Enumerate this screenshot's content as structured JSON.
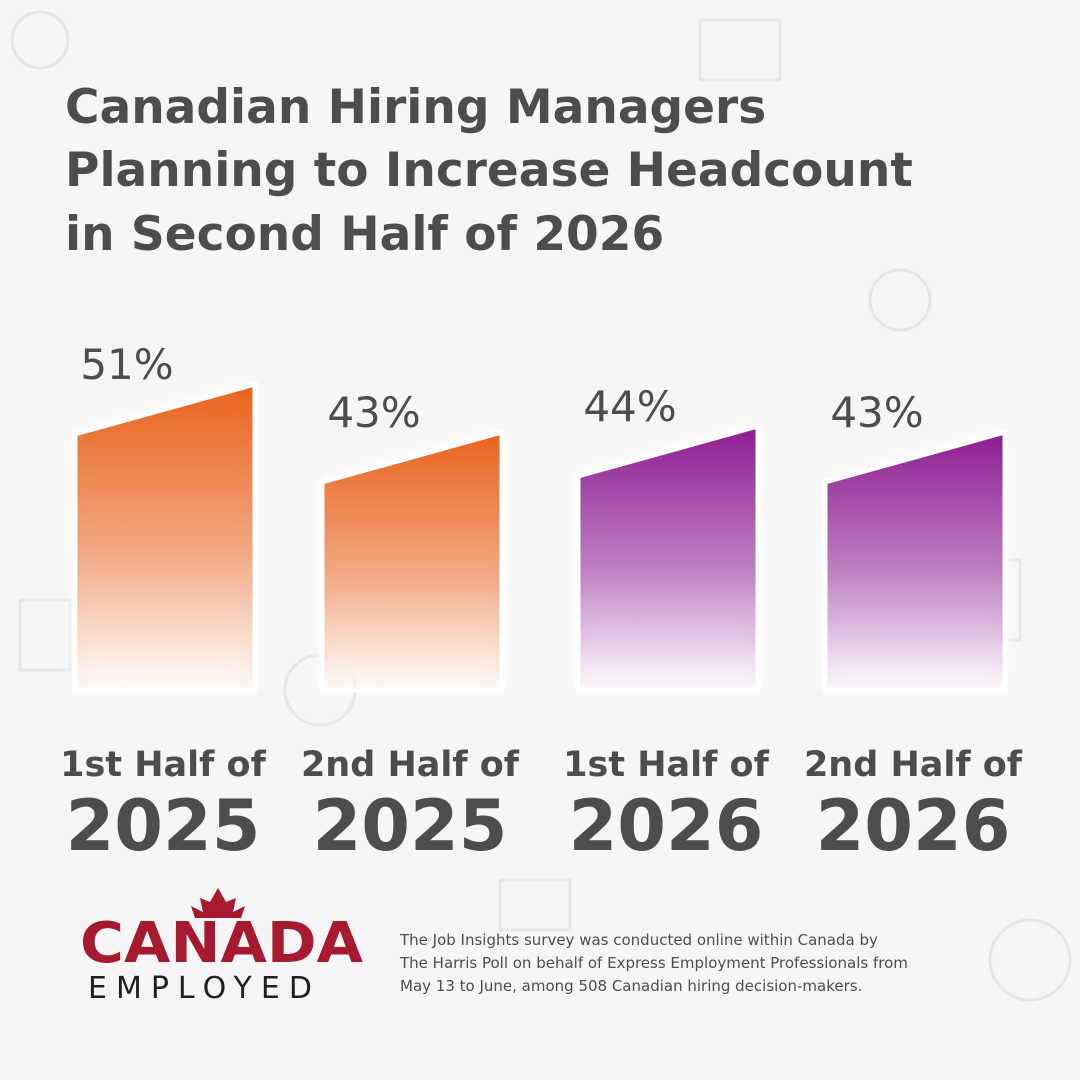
{
  "chart_data": {
    "type": "bar",
    "title": [
      "Canadian Hiring Managers",
      "Planning to Increase Headcount",
      "in Second Half of 2026"
    ],
    "categories": [
      {
        "period": "1st Half of",
        "year": "2025"
      },
      {
        "period": "2nd Half of",
        "year": "2025"
      },
      {
        "period": "1st Half of",
        "year": "2026"
      },
      {
        "period": "2nd Half of",
        "year": "2026"
      }
    ],
    "values": [
      51,
      43,
      44,
      43
    ],
    "value_labels": [
      "51%",
      "43%",
      "44%",
      "43%"
    ],
    "colors": [
      "#e8621c",
      "#e8621c",
      "#8c1d92",
      "#8c1d92"
    ]
  },
  "footer": {
    "logo": [
      "CANADA",
      "EMPLOYED"
    ],
    "note": [
      "The Job Insights survey was conducted online within Canada by",
      "The Harris Poll on behalf of Express Employment Professionals from",
      "May 13 to June, among 508 Canadian hiring decision-makers."
    ]
  }
}
